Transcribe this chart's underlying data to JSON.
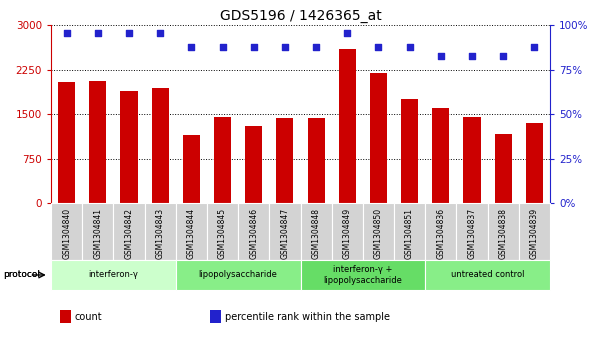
{
  "title": "GDS5196 / 1426365_at",
  "samples": [
    "GSM1304840",
    "GSM1304841",
    "GSM1304842",
    "GSM1304843",
    "GSM1304844",
    "GSM1304845",
    "GSM1304846",
    "GSM1304847",
    "GSM1304848",
    "GSM1304849",
    "GSM1304850",
    "GSM1304851",
    "GSM1304836",
    "GSM1304837",
    "GSM1304838",
    "GSM1304839"
  ],
  "counts": [
    2050,
    2060,
    1890,
    1950,
    1150,
    1450,
    1310,
    1440,
    1440,
    2600,
    2200,
    1760,
    1600,
    1450,
    1170,
    1350
  ],
  "percentiles": [
    96,
    96,
    96,
    96,
    88,
    88,
    88,
    88,
    88,
    96,
    88,
    88,
    83,
    83,
    83,
    88
  ],
  "groups": [
    {
      "label": "interferon-γ",
      "start": 0,
      "end": 4,
      "color": "#ccffcc"
    },
    {
      "label": "lipopolysaccharide",
      "start": 4,
      "end": 8,
      "color": "#88ee88"
    },
    {
      "label": "interferon-γ +\nlipopolysaccharide",
      "start": 8,
      "end": 12,
      "color": "#66dd66"
    },
    {
      "label": "untreated control",
      "start": 12,
      "end": 16,
      "color": "#88ee88"
    }
  ],
  "ylim_left": [
    0,
    3000
  ],
  "ylim_right": [
    0,
    100
  ],
  "yticks_left": [
    0,
    750,
    1500,
    2250,
    3000
  ],
  "yticks_right": [
    0,
    25,
    50,
    75,
    100
  ],
  "bar_color": "#cc0000",
  "dot_color": "#2222cc",
  "left_tick_color": "#cc0000",
  "right_tick_color": "#2222cc",
  "title_fontsize": 10,
  "bar_width": 0.55,
  "legend_items": [
    {
      "color": "#cc0000",
      "label": "count"
    },
    {
      "color": "#2222cc",
      "label": "percentile rank within the sample"
    }
  ]
}
